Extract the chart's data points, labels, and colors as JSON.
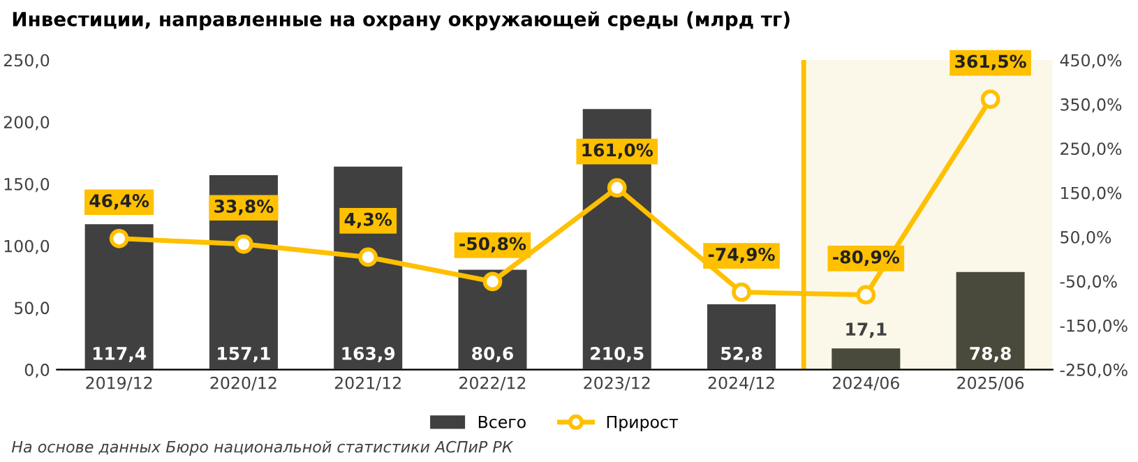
{
  "chart_data": {
    "type": "bar",
    "title": "Инвестиции, направленные на охрану окружающей среды (млрд тг)",
    "categories": [
      "2019/12",
      "2020/12",
      "2021/12",
      "2022/12",
      "2023/12",
      "2024/12",
      "2024/06",
      "2025/06"
    ],
    "series": [
      {
        "name": "Всего",
        "color": "#404040",
        "colors": [
          "#404040",
          "#404040",
          "#404040",
          "#404040",
          "#404040",
          "#404040",
          "#4a4a3c",
          "#4a4a3c"
        ],
        "values": [
          117.4,
          157.1,
          163.9,
          80.6,
          210.5,
          52.8,
          17.1,
          78.8
        ],
        "value_labels": [
          "117,4",
          "157,1",
          "163,9",
          "80,6",
          "210,5",
          "52,8",
          "17,1",
          "78,8"
        ]
      },
      {
        "name": "Прирост",
        "type": "line",
        "axis": "y2",
        "color": "#ffc000",
        "marker": "circle",
        "values": [
          46.4,
          33.8,
          4.3,
          -50.8,
          161.0,
          -74.9,
          -80.9,
          361.5
        ],
        "value_labels": [
          "46,4%",
          "33,8%",
          "4,3%",
          "-50,8%",
          "161,0%",
          "-74,9%",
          "-80,9%",
          "361,5%"
        ]
      }
    ],
    "ylim": [
      0,
      250
    ],
    "yticks": [
      {
        "value": 0,
        "label": "0,0"
      },
      {
        "value": 50,
        "label": "50,0"
      },
      {
        "value": 100,
        "label": "100,0"
      },
      {
        "value": 150,
        "label": "150,0"
      },
      {
        "value": 200,
        "label": "200,0"
      },
      {
        "value": 250,
        "label": "250,0"
      }
    ],
    "y2lim": [
      -250,
      450
    ],
    "y2ticks": [
      {
        "value": -250,
        "label": "-250,0%"
      },
      {
        "value": -150,
        "label": "-150,0%"
      },
      {
        "value": -50,
        "label": "-50,0%"
      },
      {
        "value": 50,
        "label": "50,0%"
      },
      {
        "value": 150,
        "label": "150,0%"
      },
      {
        "value": 250,
        "label": "250,0%"
      },
      {
        "value": 350,
        "label": "350,0%"
      },
      {
        "value": 450,
        "label": "450,0%"
      }
    ],
    "bands": [
      {
        "axis": "x",
        "from": "2024/06",
        "to": "2025/06",
        "color": "#fbf8ea"
      }
    ],
    "ref_lines": [
      {
        "axis": "x",
        "value": "2024/06",
        "color": "#ffc000"
      }
    ],
    "legend": "bottom",
    "grid": false,
    "annotations": [
      "На основе данных Бюро национальной статистики АСПиР РК"
    ]
  }
}
